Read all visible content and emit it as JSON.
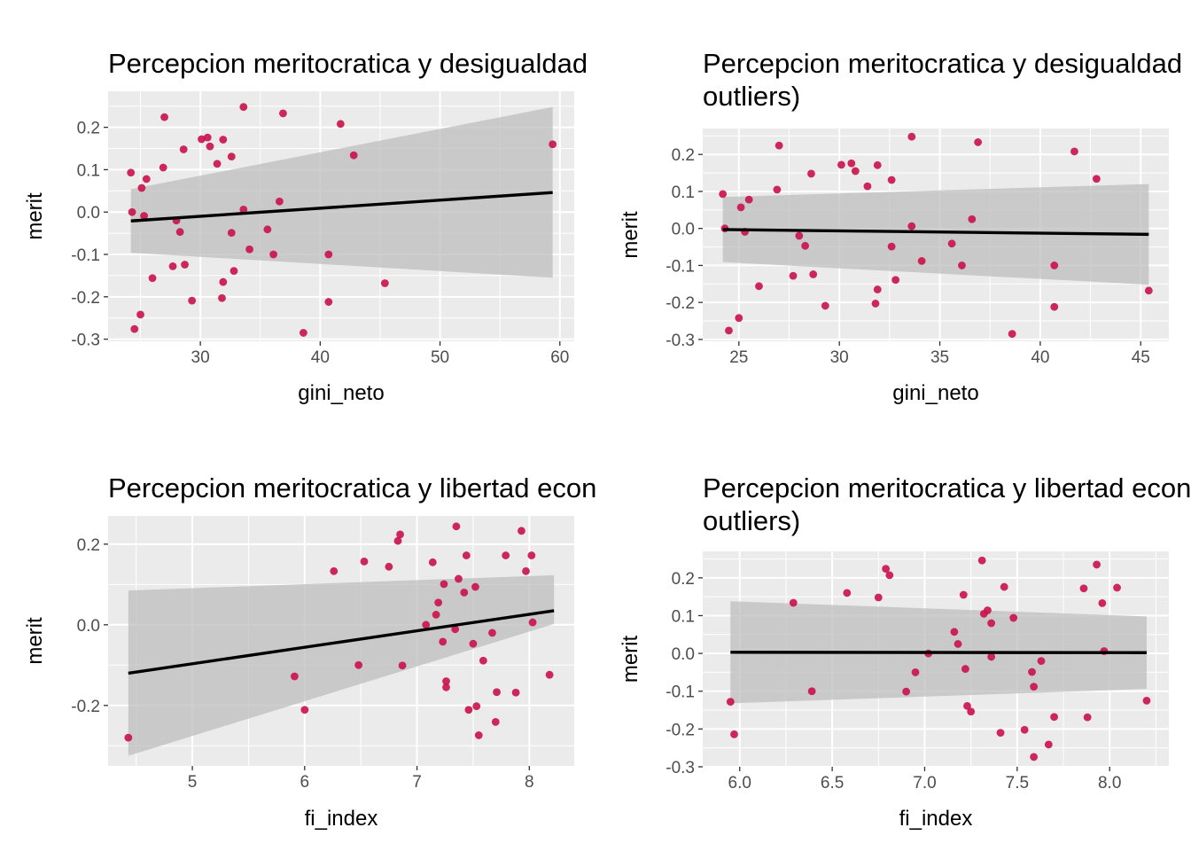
{
  "colors": {
    "panel_bg": "#EBEBEB",
    "grid_major": "#FFFFFF",
    "point": "#C9114B",
    "band": "#BEBEBE",
    "line": "#000000",
    "tick_text": "#4D4D4D"
  },
  "chart_data": [
    {
      "type": "scatter",
      "title": [
        "Percepcion meritocratica y desigualdad"
      ],
      "xlabel": "gini_neto",
      "ylabel": "merit",
      "xlim": [
        22.3,
        61.2
      ],
      "ylim": [
        -0.305,
        0.285
      ],
      "xticks": [
        30,
        40,
        50,
        60
      ],
      "xtick_labels": [
        "30",
        "40",
        "50",
        "60"
      ],
      "yticks": [
        -0.3,
        -0.2,
        -0.1,
        0.0,
        0.1,
        0.2
      ],
      "ytick_labels": [
        "-0.3",
        "-0.2",
        "-0.1",
        "0.0",
        "0.1",
        "0.2"
      ],
      "grid": true,
      "fit": {
        "x": [
          24.2,
          59.4
        ],
        "y": [
          -0.021,
          0.046
        ],
        "lower": [
          -0.096,
          -0.155
        ],
        "upper": [
          0.054,
          0.248
        ]
      },
      "points": [
        [
          24.2,
          0.093
        ],
        [
          24.3,
          0.0
        ],
        [
          24.5,
          -0.276
        ],
        [
          25.0,
          -0.242
        ],
        [
          25.1,
          0.057
        ],
        [
          25.3,
          -0.009
        ],
        [
          25.5,
          0.078
        ],
        [
          26.0,
          -0.156
        ],
        [
          26.9,
          0.105
        ],
        [
          27.0,
          0.224
        ],
        [
          27.7,
          -0.128
        ],
        [
          28.0,
          -0.02
        ],
        [
          28.3,
          -0.047
        ],
        [
          28.6,
          0.148
        ],
        [
          28.7,
          -0.124
        ],
        [
          29.3,
          -0.209
        ],
        [
          30.1,
          0.172
        ],
        [
          30.6,
          0.176
        ],
        [
          30.8,
          0.155
        ],
        [
          31.4,
          0.114
        ],
        [
          31.8,
          -0.203
        ],
        [
          31.9,
          -0.165
        ],
        [
          31.9,
          0.171
        ],
        [
          32.6,
          -0.049
        ],
        [
          32.6,
          0.131
        ],
        [
          32.8,
          -0.139
        ],
        [
          33.6,
          0.248
        ],
        [
          33.6,
          0.006
        ],
        [
          34.1,
          -0.088
        ],
        [
          35.6,
          -0.041
        ],
        [
          36.1,
          -0.1
        ],
        [
          36.6,
          0.025
        ],
        [
          36.9,
          0.233
        ],
        [
          38.6,
          -0.285
        ],
        [
          40.7,
          -0.212
        ],
        [
          40.7,
          -0.1
        ],
        [
          41.7,
          0.208
        ],
        [
          42.8,
          0.134
        ],
        [
          45.4,
          -0.168
        ],
        [
          59.4,
          0.16
        ]
      ]
    },
    {
      "type": "scatter",
      "title": [
        "Percepcion meritocratica y desigualdad (sin",
        "outliers)"
      ],
      "xlabel": "gini_neto",
      "ylabel": "merit",
      "xlim": [
        23.2,
        46.4
      ],
      "ylim": [
        -0.305,
        0.27
      ],
      "xticks": [
        25,
        30,
        35,
        40,
        45
      ],
      "xtick_labels": [
        "25",
        "30",
        "35",
        "40",
        "45"
      ],
      "yticks": [
        -0.3,
        -0.2,
        -0.1,
        0.0,
        0.1,
        0.2
      ],
      "ytick_labels": [
        "-0.3",
        "-0.2",
        "-0.1",
        "0.0",
        "0.1",
        "0.2"
      ],
      "grid": true,
      "fit": {
        "x": [
          24.2,
          45.4
        ],
        "y": [
          -0.003,
          -0.016
        ],
        "lower": [
          -0.091,
          -0.152
        ],
        "upper": [
          0.085,
          0.12
        ]
      },
      "points": [
        [
          24.2,
          0.093
        ],
        [
          24.3,
          0.0
        ],
        [
          24.5,
          -0.276
        ],
        [
          25.0,
          -0.242
        ],
        [
          25.1,
          0.057
        ],
        [
          25.3,
          -0.009
        ],
        [
          25.5,
          0.078
        ],
        [
          26.0,
          -0.156
        ],
        [
          26.9,
          0.105
        ],
        [
          27.0,
          0.224
        ],
        [
          27.7,
          -0.128
        ],
        [
          28.0,
          -0.02
        ],
        [
          28.3,
          -0.047
        ],
        [
          28.6,
          0.148
        ],
        [
          28.7,
          -0.124
        ],
        [
          29.3,
          -0.209
        ],
        [
          30.1,
          0.172
        ],
        [
          30.6,
          0.176
        ],
        [
          30.8,
          0.155
        ],
        [
          31.4,
          0.114
        ],
        [
          31.8,
          -0.203
        ],
        [
          31.9,
          -0.165
        ],
        [
          31.9,
          0.171
        ],
        [
          32.6,
          -0.049
        ],
        [
          32.6,
          0.131
        ],
        [
          32.8,
          -0.139
        ],
        [
          33.6,
          0.248
        ],
        [
          33.6,
          0.006
        ],
        [
          34.1,
          -0.088
        ],
        [
          35.6,
          -0.041
        ],
        [
          36.1,
          -0.1
        ],
        [
          36.6,
          0.025
        ],
        [
          36.9,
          0.233
        ],
        [
          38.6,
          -0.285
        ],
        [
          40.7,
          -0.212
        ],
        [
          40.7,
          -0.1
        ],
        [
          41.7,
          0.208
        ],
        [
          42.8,
          0.134
        ],
        [
          45.4,
          -0.168
        ]
      ]
    },
    {
      "type": "scatter",
      "title": [
        "Percepcion meritocratica y libertad economica"
      ],
      "xlabel": "fi_index",
      "ylabel": "merit",
      "xlim": [
        4.25,
        8.4
      ],
      "ylim": [
        -0.35,
        0.27
      ],
      "xticks": [
        5,
        6,
        7,
        8
      ],
      "xtick_labels": [
        "5",
        "6",
        "7",
        "8"
      ],
      "yticks": [
        -0.2,
        0.0,
        0.2
      ],
      "ytick_labels": [
        "-0.2",
        "0.0",
        "0.2"
      ],
      "grid": true,
      "fit": {
        "x": [
          4.43,
          8.22
        ],
        "y": [
          -0.12,
          0.035
        ],
        "lower": [
          -0.325,
          0.002
        ],
        "upper": [
          0.085,
          0.123
        ]
      },
      "points": [
        [
          4.43,
          -0.28
        ],
        [
          5.91,
          -0.128
        ],
        [
          6.0,
          -0.211
        ],
        [
          6.26,
          0.133
        ],
        [
          6.48,
          -0.1
        ],
        [
          6.53,
          0.157
        ],
        [
          6.75,
          0.144
        ],
        [
          6.83,
          0.208
        ],
        [
          6.85,
          0.224
        ],
        [
          6.87,
          -0.101
        ],
        [
          7.08,
          0.0
        ],
        [
          7.14,
          0.155
        ],
        [
          7.17,
          0.025
        ],
        [
          7.19,
          0.055
        ],
        [
          7.23,
          -0.042
        ],
        [
          7.24,
          0.101
        ],
        [
          7.26,
          -0.14
        ],
        [
          7.26,
          -0.155
        ],
        [
          7.34,
          -0.011
        ],
        [
          7.35,
          0.244
        ],
        [
          7.37,
          0.114
        ],
        [
          7.42,
          0.08
        ],
        [
          7.44,
          0.172
        ],
        [
          7.46,
          -0.211
        ],
        [
          7.5,
          -0.047
        ],
        [
          7.52,
          0.094
        ],
        [
          7.53,
          -0.202
        ],
        [
          7.55,
          -0.274
        ],
        [
          7.59,
          -0.089
        ],
        [
          7.67,
          -0.02
        ],
        [
          7.7,
          -0.241
        ],
        [
          7.71,
          -0.167
        ],
        [
          7.79,
          0.172
        ],
        [
          7.88,
          -0.168
        ],
        [
          7.93,
          0.233
        ],
        [
          7.97,
          0.133
        ],
        [
          8.02,
          0.172
        ],
        [
          8.03,
          0.006
        ],
        [
          8.18,
          -0.124
        ]
      ]
    },
    {
      "type": "scatter",
      "title": [
        "Percepcion meritocratica y libertad economica (sin",
        "outliers)"
      ],
      "xlabel": "fi_index",
      "ylabel": "merit",
      "xlim": [
        5.8,
        8.32
      ],
      "ylim": [
        -0.3,
        0.27
      ],
      "xticks": [
        6.0,
        6.5,
        7.0,
        7.5,
        8.0
      ],
      "xtick_labels": [
        "6.0",
        "6.5",
        "7.0",
        "7.5",
        "8.0"
      ],
      "yticks": [
        -0.3,
        -0.2,
        -0.1,
        0.0,
        0.1,
        0.2
      ],
      "ytick_labels": [
        "-0.3",
        "-0.2",
        "-0.1",
        "0.0",
        "0.1",
        "0.2"
      ],
      "grid": true,
      "fit": {
        "x": [
          5.95,
          8.2
        ],
        "y": [
          0.003,
          0.002
        ],
        "lower": [
          -0.132,
          -0.094
        ],
        "upper": [
          0.138,
          0.098
        ]
      },
      "points": [
        [
          5.95,
          -0.128
        ],
        [
          5.97,
          -0.214
        ],
        [
          6.29,
          0.134
        ],
        [
          6.39,
          -0.1
        ],
        [
          6.58,
          0.16
        ],
        [
          6.75,
          0.148
        ],
        [
          6.79,
          0.224
        ],
        [
          6.81,
          0.207
        ],
        [
          6.9,
          -0.101
        ],
        [
          6.95,
          -0.05
        ],
        [
          7.02,
          0.0
        ],
        [
          7.16,
          0.057
        ],
        [
          7.18,
          0.025
        ],
        [
          7.21,
          0.155
        ],
        [
          7.22,
          -0.041
        ],
        [
          7.23,
          -0.139
        ],
        [
          7.25,
          -0.154
        ],
        [
          7.31,
          0.246
        ],
        [
          7.32,
          0.105
        ],
        [
          7.34,
          0.114
        ],
        [
          7.36,
          -0.009
        ],
        [
          7.36,
          0.08
        ],
        [
          7.41,
          -0.21
        ],
        [
          7.43,
          0.176
        ],
        [
          7.48,
          0.094
        ],
        [
          7.54,
          -0.202
        ],
        [
          7.58,
          -0.049
        ],
        [
          7.59,
          -0.088
        ],
        [
          7.59,
          -0.274
        ],
        [
          7.63,
          -0.02
        ],
        [
          7.67,
          -0.241
        ],
        [
          7.7,
          -0.168
        ],
        [
          7.86,
          0.172
        ],
        [
          7.88,
          -0.169
        ],
        [
          7.93,
          0.235
        ],
        [
          7.96,
          0.133
        ],
        [
          7.97,
          0.006
        ],
        [
          8.04,
          0.174
        ],
        [
          8.2,
          -0.125
        ]
      ]
    }
  ]
}
